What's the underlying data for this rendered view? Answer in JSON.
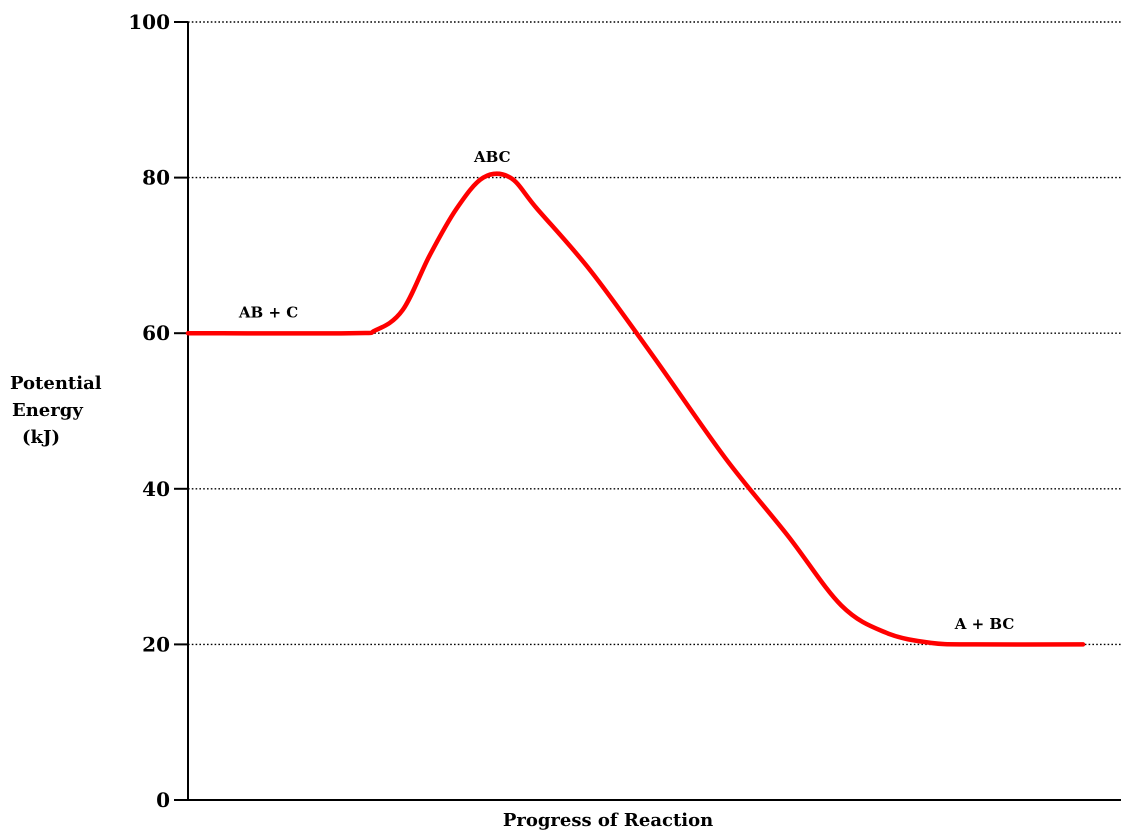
{
  "chart_data": {
    "type": "line",
    "ylabel_lines": [
      "Potential",
      "Energy",
      "(kJ)"
    ],
    "xlabel": "Progress of Reaction",
    "ylim": [
      0,
      100
    ],
    "yticks": [
      0,
      20,
      40,
      60,
      80,
      100
    ],
    "grid": true,
    "series": [
      {
        "color": "#ff0000",
        "points": [
          [
            0,
            60
          ],
          [
            0.18,
            60
          ],
          [
            0.21,
            60.4
          ],
          [
            0.24,
            63
          ],
          [
            0.27,
            70
          ],
          [
            0.3,
            76
          ],
          [
            0.33,
            80
          ],
          [
            0.36,
            80
          ],
          [
            0.39,
            76
          ],
          [
            0.45,
            68
          ],
          [
            0.52,
            57
          ],
          [
            0.6,
            44
          ],
          [
            0.67,
            34
          ],
          [
            0.73,
            25
          ],
          [
            0.78,
            21.5
          ],
          [
            0.83,
            20.2
          ],
          [
            0.88,
            20
          ],
          [
            1.0,
            20
          ]
        ]
      }
    ],
    "annotations": [
      {
        "text": "AB + C",
        "x": 0.09,
        "y": 62
      },
      {
        "text": "ABC",
        "x": 0.34,
        "y": 82
      },
      {
        "text": "A + BC",
        "x": 0.89,
        "y": 22
      }
    ]
  }
}
